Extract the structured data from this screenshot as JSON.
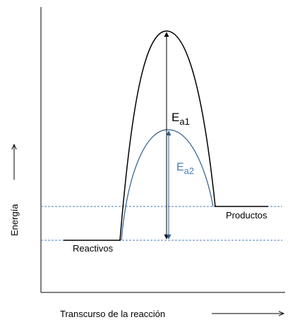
{
  "labels": {
    "y_axis": "Energía",
    "x_axis": "Transcurso de la reacción",
    "reactants": "Reactivos",
    "products": "Productos",
    "ea1": {
      "symbol": "E",
      "subscript": "a1"
    },
    "ea2": {
      "symbol": "E",
      "subscript": "a2"
    }
  }
}
